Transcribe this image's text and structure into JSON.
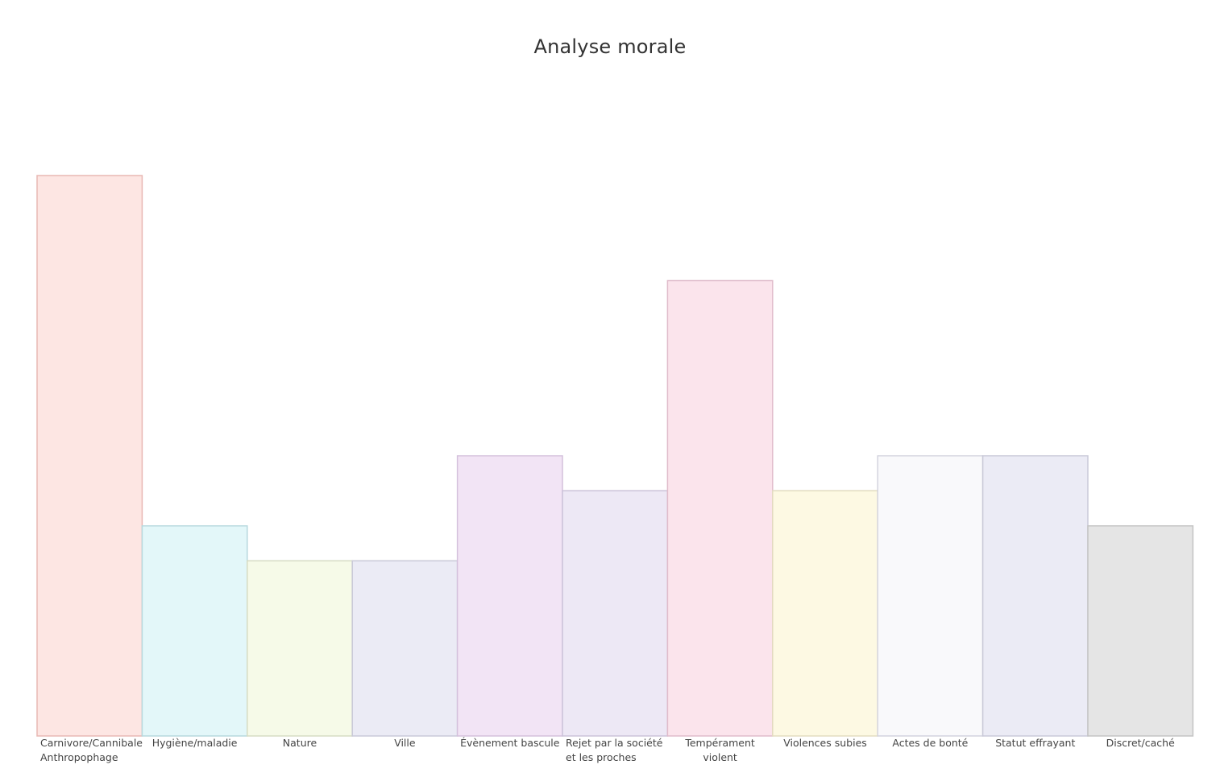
{
  "chart_data": {
    "type": "bar",
    "title": "Analyse morale",
    "xlabel": "",
    "ylabel": "",
    "grid": false,
    "legend": "none",
    "categories": [
      "Carnivore/Cannibale\nAnthropophage",
      "Hygiène/maladie",
      "Nature",
      "Ville",
      "Évènement bascule",
      "Rejet par la société\net les proches",
      "Tempérament violent",
      "Violences subies",
      "Actes de bonté",
      "Statut effrayant",
      "Discret/caché"
    ],
    "values": [
      16,
      6,
      5,
      5,
      8,
      7,
      13,
      7,
      8,
      8,
      6
    ],
    "colors": [
      "#fde6e3",
      "#e3f7f9",
      "#f6fae8",
      "#ebebf5",
      "#f2e4f5",
      "#ede8f5",
      "#fbe4ec",
      "#fdf9e3",
      "#f9f9fb",
      "#ebebf5",
      "#e5e5e5"
    ],
    "borders": [
      "#e8b8b4",
      "#b7d9de",
      "#d7dcc4",
      "#c9c9d8",
      "#d4c0dc",
      "#ccc3d9",
      "#e0bccb",
      "#e3dcc0",
      "#d3d3de",
      "#c9c9d8",
      "#c4c4c4"
    ]
  }
}
